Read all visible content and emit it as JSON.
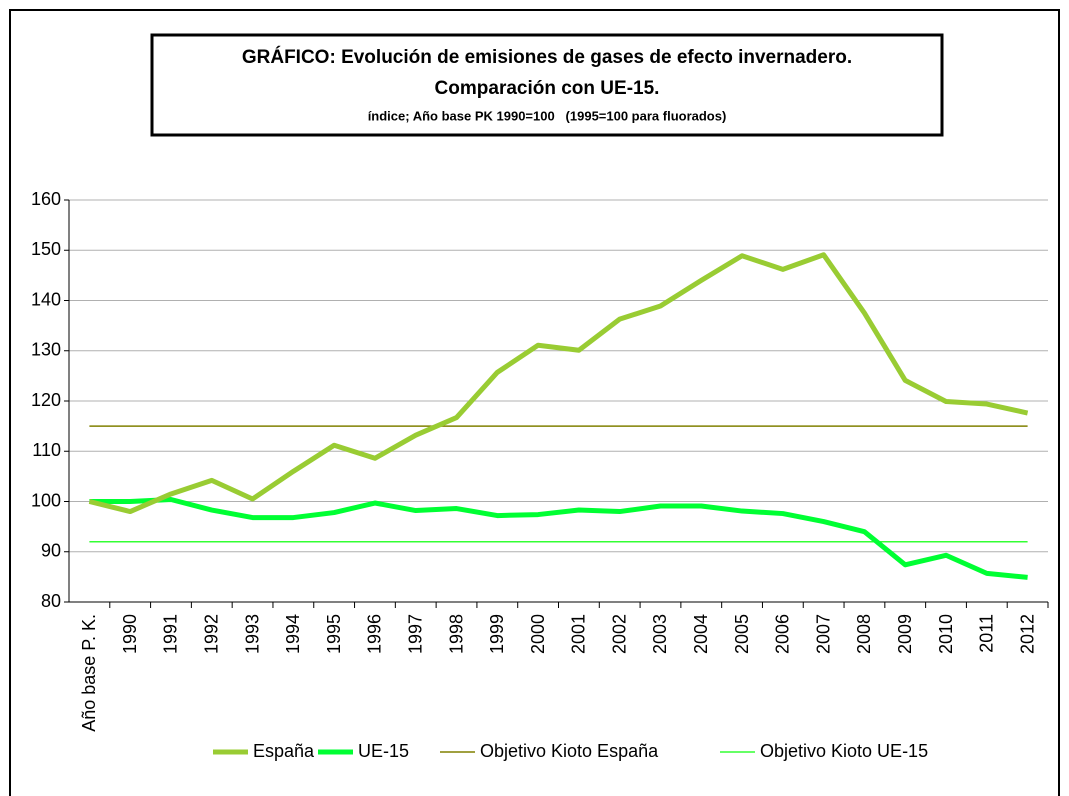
{
  "chart_data": {
    "type": "line",
    "title": [
      "GRÁFICO: Evolución de emisiones de gases de efecto invernadero.",
      "Comparación con UE-15."
    ],
    "subtitle": "índice; Año base PK 1990=100   (1995=100 para fluorados)",
    "categories": [
      "Año base P. K.",
      "1990",
      "1991",
      "1992",
      "1993",
      "1994",
      "1995",
      "1996",
      "1997",
      "1998",
      "1999",
      "2000",
      "2001",
      "2002",
      "2003",
      "2004",
      "2005",
      "2006",
      "2007",
      "2008",
      "2009",
      "2010",
      "2011",
      "2012"
    ],
    "series": [
      {
        "name": "España",
        "color": "#99cc33",
        "linewidth": 5,
        "values": [
          100,
          98,
          101.5,
          104.2,
          100.5,
          106,
          111.2,
          108.6,
          113.2,
          116.7,
          125.7,
          131.1,
          130.1,
          136.3,
          138.9,
          144,
          148.9,
          146.2,
          149.1,
          137.5,
          124.1,
          119.9,
          119.4,
          117.6
        ]
      },
      {
        "name": "UE-15",
        "color": "#00ff33",
        "linewidth": 5,
        "values": [
          100,
          100,
          100.4,
          98.3,
          96.8,
          96.8,
          97.8,
          99.7,
          98.2,
          98.6,
          97.2,
          97.4,
          98.3,
          98,
          99.1,
          99.1,
          98.1,
          97.6,
          96,
          94,
          87.4,
          89.3,
          85.7,
          84.9
        ]
      },
      {
        "name": "Objetivo Kioto España",
        "color": "#808000",
        "linewidth": 1.5,
        "values": [
          115,
          115,
          115,
          115,
          115,
          115,
          115,
          115,
          115,
          115,
          115,
          115,
          115,
          115,
          115,
          115,
          115,
          115,
          115,
          115,
          115,
          115,
          115,
          115
        ]
      },
      {
        "name": "Objetivo Kioto UE-15",
        "color": "#33ff33",
        "linewidth": 1.5,
        "values": [
          92,
          92,
          92,
          92,
          92,
          92,
          92,
          92,
          92,
          92,
          92,
          92,
          92,
          92,
          92,
          92,
          92,
          92,
          92,
          92,
          92,
          92,
          92,
          92
        ]
      }
    ],
    "ylim": [
      80,
      160
    ],
    "yticks": [
      80,
      90,
      100,
      110,
      120,
      130,
      140,
      150,
      160
    ],
    "grid": true,
    "legend": "bottom"
  }
}
